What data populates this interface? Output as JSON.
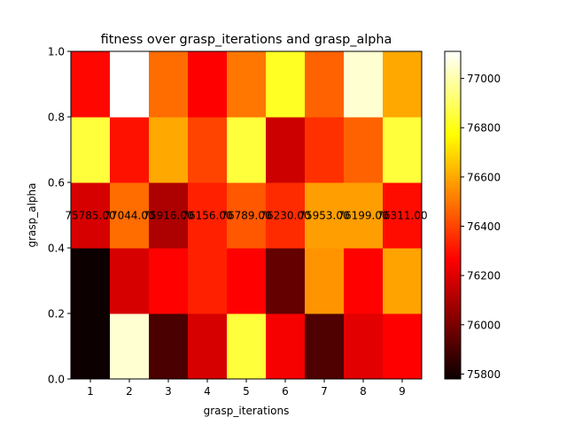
{
  "chart_data": {
    "type": "heatmap",
    "title": "fitness over grasp_iterations and grasp_alpha",
    "xlabel": "grasp_iterations",
    "ylabel": "grasp_alpha",
    "x_categories": [
      "1",
      "2",
      "3",
      "4",
      "5",
      "6",
      "7",
      "8",
      "9"
    ],
    "y_ticks": [
      "0.0",
      "0.2",
      "0.4",
      "0.6",
      "0.8",
      "1.0"
    ],
    "ylim": [
      0.0,
      1.0
    ],
    "grid": false,
    "colormap": "hot",
    "colorbar": {
      "vmin": 75780,
      "vmax": 77110,
      "ticks": [
        75800,
        76000,
        76200,
        76400,
        76600,
        76800,
        77000
      ],
      "tick_labels": [
        "75800",
        "76000",
        "76200",
        "76400",
        "76600",
        "76800",
        "77000"
      ]
    },
    "rows_bottom_to_top": [
      {
        "y_range": [
          0.0,
          0.2
        ],
        "values": [
          75785,
          77050,
          75900,
          76170,
          76850,
          76230,
          75910,
          76190,
          76260
        ]
      },
      {
        "y_range": [
          0.2,
          0.4
        ],
        "values": [
          75785,
          76170,
          76270,
          76330,
          76260,
          75950,
          76560,
          76270,
          76590
        ]
      },
      {
        "y_range": [
          0.4,
          0.6
        ],
        "values": [
          76170,
          76480,
          76090,
          76330,
          76440,
          76350,
          76580,
          76580,
          76290
        ]
      },
      {
        "y_range": [
          0.6,
          0.8
        ],
        "values": [
          76850,
          76300,
          76600,
          76400,
          76850,
          76150,
          76360,
          76460,
          76850
        ]
      },
      {
        "y_range": [
          0.8,
          1.0
        ],
        "values": [
          76280,
          77110,
          76480,
          76250,
          76500,
          76820,
          76460,
          77050,
          76600
        ]
      }
    ],
    "annotations": {
      "y": 0.5,
      "labels": [
        "75785.00",
        "77044.00",
        "75916.00",
        "76156.00",
        "76789.00",
        "76230.00",
        "75953.00",
        "76199.00",
        "76311.00"
      ]
    }
  }
}
